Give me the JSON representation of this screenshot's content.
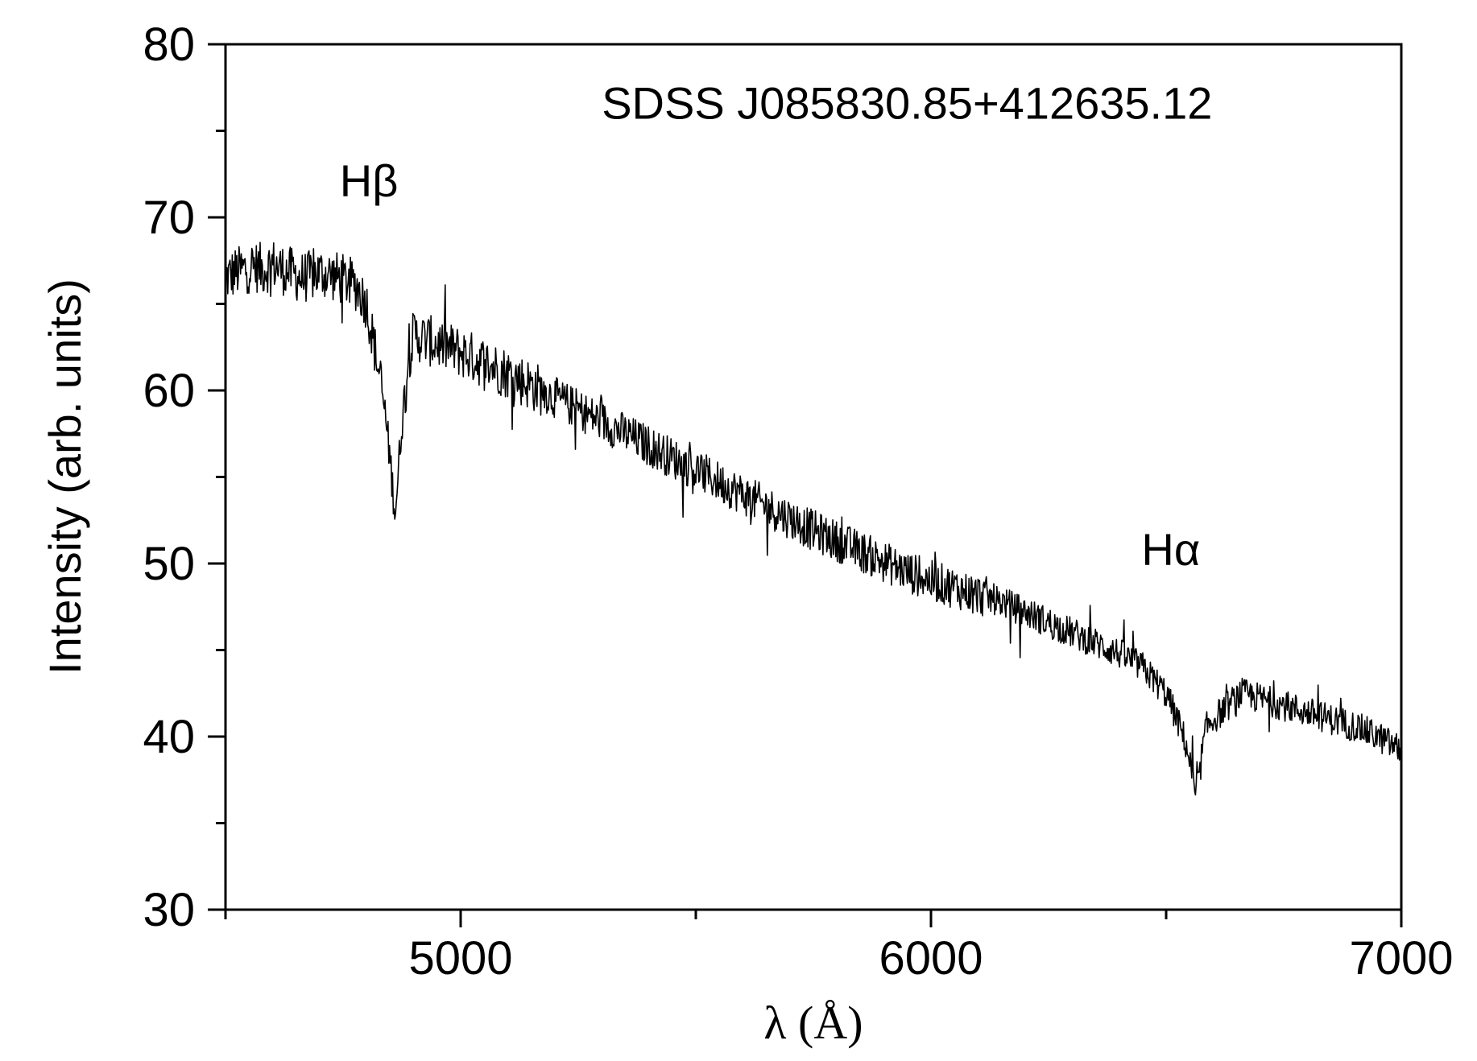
{
  "chart_data": {
    "type": "line",
    "title": "",
    "xlabel": "λ (Å)",
    "ylabel": "Intensity (arb. units)",
    "xlim": [
      4500,
      7000
    ],
    "ylim": [
      30,
      80
    ],
    "xticks": [
      5000,
      6000,
      7000
    ],
    "yticks": [
      30,
      40,
      50,
      60,
      70,
      80
    ],
    "grid": false,
    "legend": "none",
    "line_color": "#000000",
    "annotations": [
      {
        "text": "SDSS J085830.85+412635.12",
        "x": 5300,
        "y": 75.7
      },
      {
        "text": "Hβ",
        "x": 4805,
        "y": 71.2
      },
      {
        "text": "Hα",
        "x": 6510,
        "y": 49.9
      }
    ],
    "series": [
      {
        "x": [
          4500,
          4520,
          4540,
          4560,
          4580,
          4600,
          4620,
          4640,
          4660,
          4680,
          4700,
          4720,
          4740,
          4760,
          4780,
          4800,
          4810,
          4820,
          4830,
          4840,
          4850,
          4855,
          4861,
          4867,
          4873,
          4880,
          4890,
          4900,
          4920,
          4940,
          4960,
          4980,
          5000,
          5050,
          5100,
          5150,
          5200,
          5250,
          5300,
          5350,
          5400,
          5450,
          5500,
          5550,
          5600,
          5650,
          5700,
          5750,
          5800,
          5850,
          5900,
          5950,
          6000,
          6050,
          6100,
          6150,
          6200,
          6250,
          6300,
          6350,
          6400,
          6450,
          6500,
          6520,
          6540,
          6550,
          6556,
          6563,
          6570,
          6576,
          6585,
          6600,
          6620,
          6640,
          6660,
          6700,
          6750,
          6800,
          6850,
          6900,
          6950,
          7000
        ],
        "values": [
          66.5,
          66.8,
          67.0,
          67.2,
          67.0,
          67.3,
          67.0,
          66.8,
          66.5,
          66.6,
          66.8,
          66.7,
          66.5,
          66.3,
          66.0,
          65.0,
          63.5,
          62.0,
          60.5,
          58.5,
          56.0,
          54.5,
          53.0,
          55.0,
          57.5,
          59.5,
          62.0,
          63.2,
          63.0,
          62.8,
          62.6,
          62.4,
          62.2,
          61.6,
          61.0,
          60.3,
          59.6,
          58.9,
          58.2,
          57.5,
          56.8,
          56.1,
          55.4,
          54.7,
          54.0,
          53.3,
          52.6,
          51.9,
          51.3,
          50.7,
          50.1,
          49.5,
          49.0,
          48.6,
          48.2,
          47.8,
          47.2,
          46.6,
          46.0,
          45.4,
          44.8,
          44.0,
          42.5,
          41.2,
          39.8,
          38.6,
          37.5,
          36.5,
          37.5,
          39.0,
          40.5,
          41.0,
          41.5,
          42.0,
          42.5,
          42.2,
          41.8,
          41.4,
          41.0,
          40.6,
          40.0,
          39.2
        ]
      }
    ]
  }
}
